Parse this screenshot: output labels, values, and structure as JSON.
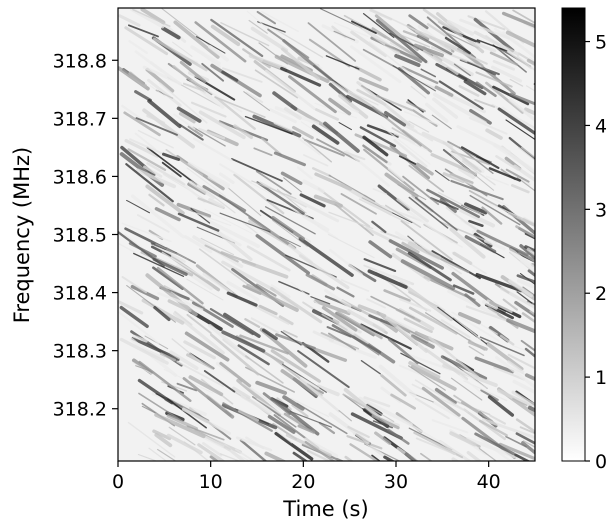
{
  "chart_data": {
    "type": "heatmap",
    "title": "",
    "xlabel": "Time (s)",
    "ylabel": "Frequency (MHz)",
    "xlim": [
      0,
      45
    ],
    "ylim": [
      318.11,
      318.89
    ],
    "x_ticks": [
      0,
      10,
      20,
      30,
      40
    ],
    "x_tick_labels": [
      "0",
      "10",
      "20",
      "30",
      "40"
    ],
    "y_ticks": [
      318.2,
      318.3,
      318.4,
      318.5,
      318.6,
      318.7,
      318.8
    ],
    "y_tick_labels": [
      "318.2",
      "318.3",
      "318.4",
      "318.5",
      "318.6",
      "318.7",
      "318.8"
    ],
    "colorbar": {
      "min": 0,
      "max": 5.4,
      "ticks": [
        0,
        1,
        2,
        3,
        4,
        5
      ],
      "tick_labels": [
        "0",
        "1",
        "2",
        "3",
        "4",
        "5"
      ],
      "colormap": "gray_r",
      "low_color": "#ffffff",
      "high_color": "#000000"
    },
    "grid": false,
    "description_of_values": "dynamic spectrum intensity with diagonal scintillation striations"
  }
}
